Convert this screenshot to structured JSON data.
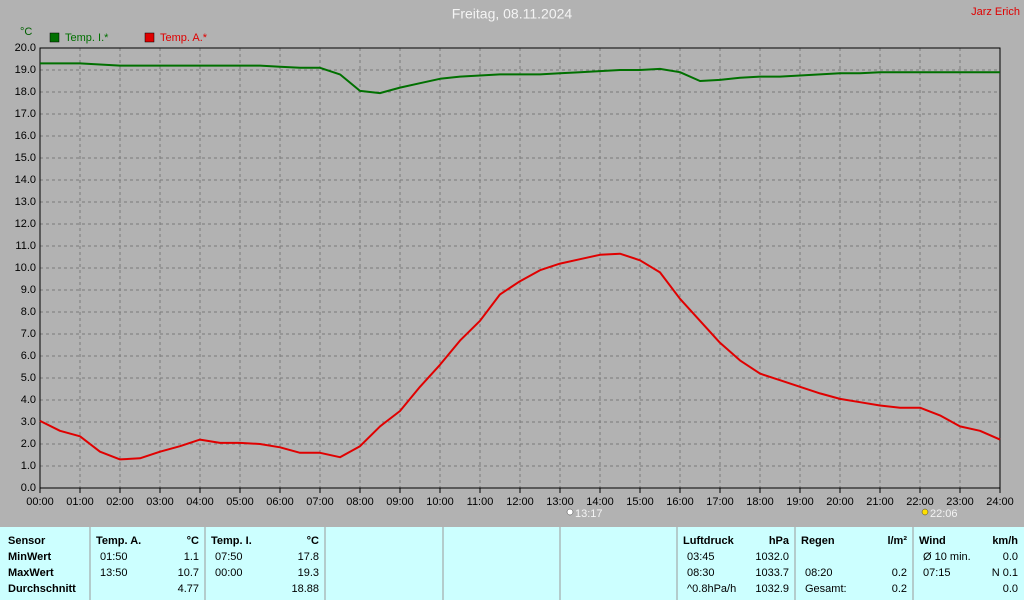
{
  "chart_data": {
    "type": "line",
    "title": "Freitag, 08.11.2024",
    "subtitle": "Jarz Erich",
    "y_label": "°C",
    "x": [
      0,
      0.5,
      1,
      1.5,
      2,
      2.5,
      3,
      3.5,
      4,
      4.5,
      5,
      5.5,
      6,
      6.5,
      7,
      7.5,
      8,
      8.5,
      9,
      9.5,
      10,
      10.5,
      11,
      11.5,
      12,
      12.5,
      13,
      13.5,
      14,
      14.5,
      15,
      15.5,
      16,
      16.5,
      17,
      17.5,
      18,
      18.5,
      19,
      19.5,
      20,
      20.5,
      21,
      21.5,
      22,
      22.5,
      23,
      23.5,
      24
    ],
    "series": [
      {
        "name": "Temp. I.*",
        "color": "#007000",
        "values": [
          19.3,
          19.3,
          19.3,
          19.25,
          19.2,
          19.2,
          19.2,
          19.2,
          19.2,
          19.2,
          19.2,
          19.2,
          19.15,
          19.1,
          19.1,
          18.8,
          18.05,
          17.95,
          18.2,
          18.4,
          18.6,
          18.7,
          18.75,
          18.8,
          18.8,
          18.8,
          18.85,
          18.9,
          18.95,
          19.0,
          19.0,
          19.05,
          18.9,
          18.5,
          18.55,
          18.65,
          18.7,
          18.7,
          18.75,
          18.8,
          18.85,
          18.85,
          18.9,
          18.9,
          18.9,
          18.9,
          18.9,
          18.9,
          18.9
        ]
      },
      {
        "name": "Temp. A.*",
        "color": "#e00000",
        "values": [
          3.05,
          2.6,
          2.35,
          1.65,
          1.3,
          1.35,
          1.65,
          1.9,
          2.2,
          2.05,
          2.05,
          2.0,
          1.85,
          1.6,
          1.6,
          1.4,
          1.9,
          2.8,
          3.5,
          4.6,
          5.6,
          6.7,
          7.6,
          8.8,
          9.4,
          9.9,
          10.2,
          10.4,
          10.6,
          10.65,
          10.35,
          9.8,
          8.6,
          7.6,
          6.6,
          5.8,
          5.2,
          4.9,
          4.6,
          4.3,
          4.05,
          3.9,
          3.75,
          3.65,
          3.65,
          3.3,
          2.8,
          2.6,
          2.2
        ]
      }
    ],
    "xlim": [
      0,
      24
    ],
    "xticks": [
      {
        "value": 0,
        "label": "00:00"
      },
      {
        "value": 1,
        "label": "01:00"
      },
      {
        "value": 2,
        "label": "02:00"
      },
      {
        "value": 3,
        "label": "03:00"
      },
      {
        "value": 4,
        "label": "04:00"
      },
      {
        "value": 5,
        "label": "05:00"
      },
      {
        "value": 6,
        "label": "06:00"
      },
      {
        "value": 7,
        "label": "07:00"
      },
      {
        "value": 8,
        "label": "08:00"
      },
      {
        "value": 9,
        "label": "09:00"
      },
      {
        "value": 10,
        "label": "10:00"
      },
      {
        "value": 11,
        "label": "11:00"
      },
      {
        "value": 12,
        "label": "12:00"
      },
      {
        "value": 13,
        "label": "13:00"
      },
      {
        "value": 14,
        "label": "14:00"
      },
      {
        "value": 15,
        "label": "15:00"
      },
      {
        "value": 16,
        "label": "16:00"
      },
      {
        "value": 17,
        "label": "17:00"
      },
      {
        "value": 18,
        "label": "18:00"
      },
      {
        "value": 19,
        "label": "19:00"
      },
      {
        "value": 20,
        "label": "20:00"
      },
      {
        "value": 21,
        "label": "21:00"
      },
      {
        "value": 22,
        "label": "22:00"
      },
      {
        "value": 23,
        "label": "23:00"
      },
      {
        "value": 24,
        "label": "24:00"
      }
    ],
    "ylim": [
      0,
      20
    ],
    "yticks": [
      {
        "value": 0,
        "label": "0.0"
      },
      {
        "value": 1,
        "label": "1.0"
      },
      {
        "value": 2,
        "label": "2.0"
      },
      {
        "value": 3,
        "label": "3.0"
      },
      {
        "value": 4,
        "label": "4.0"
      },
      {
        "value": 5,
        "label": "5.0"
      },
      {
        "value": 6,
        "label": "6.0"
      },
      {
        "value": 7,
        "label": "7.0"
      },
      {
        "value": 8,
        "label": "8.0"
      },
      {
        "value": 9,
        "label": "9.0"
      },
      {
        "value": 10,
        "label": "10.0"
      },
      {
        "value": 11,
        "label": "11.0"
      },
      {
        "value": 12,
        "label": "12.0"
      },
      {
        "value": 13,
        "label": "13.0"
      },
      {
        "value": 14,
        "label": "14.0"
      },
      {
        "value": 15,
        "label": "15.0"
      },
      {
        "value": 16,
        "label": "16.0"
      },
      {
        "value": 17,
        "label": "17.0"
      },
      {
        "value": 18,
        "label": "18.0"
      },
      {
        "value": 19,
        "label": "19.0"
      },
      {
        "value": 20,
        "label": "20.0"
      }
    ],
    "grid": true,
    "annotations": [
      "13:17",
      "22:06"
    ]
  },
  "table": {
    "row_labels": [
      "Sensor",
      "MinWert",
      "MaxWert",
      "Durchschnitt"
    ],
    "groups": [
      {
        "name": "Temp. A.",
        "unit": "°C",
        "cells": [
          {
            "time": "01:50",
            "value": "1.1"
          },
          {
            "time": "13:50",
            "value": "10.7"
          },
          {
            "value": "4.77"
          }
        ]
      },
      {
        "name": "Temp. I.",
        "unit": "°C",
        "cells": [
          {
            "time": "07:50",
            "value": "17.8"
          },
          {
            "time": "00:00",
            "value": "19.3"
          },
          {
            "value": "18.88"
          }
        ]
      },
      {
        "name": "Luftdruck",
        "unit": "hPa",
        "cells": [
          {
            "time": "03:45",
            "value": "1032.0"
          },
          {
            "time": "08:30",
            "value": "1033.7"
          },
          {
            "time": "^0.8hPa/h",
            "value": "1032.9"
          }
        ]
      },
      {
        "name": "Regen",
        "unit": "l/m²",
        "cells": [
          {},
          {
            "time": "08:20",
            "value": "0.2"
          },
          {
            "time": "Gesamt:",
            "value": "0.2"
          }
        ]
      },
      {
        "name": "Wind",
        "unit": "km/h",
        "cells": [
          {
            "time": "Ø 10 min.",
            "value": "0.0"
          },
          {
            "time": "07:15",
            "value": "N 0.1"
          },
          {
            "value": "0.0"
          }
        ]
      }
    ]
  }
}
